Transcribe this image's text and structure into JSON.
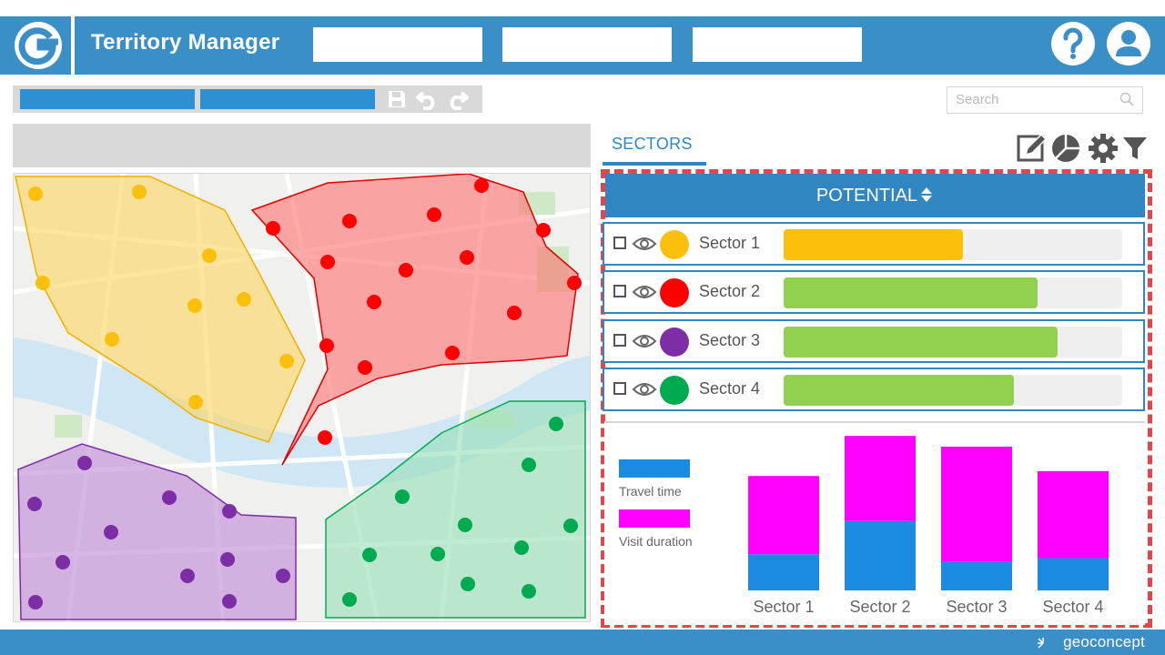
{
  "header": {
    "logo_letter": "G",
    "app_title": "Territory Manager",
    "help_label": "?"
  },
  "toolbar": {
    "search_placeholder": "Search"
  },
  "panel": {
    "tab_label": "SECTORS",
    "column_header": "POTENTIAL",
    "sort_icon": "sort-arrows-icon",
    "actions": [
      "edit-icon",
      "pie-chart-icon",
      "gear-icon",
      "filter-icon"
    ]
  },
  "sectors": [
    {
      "name": "Sector 1",
      "color": "#fcbf0a",
      "potential": 0.53,
      "bar_color": "#fcbf0a"
    },
    {
      "name": "Sector 2",
      "color": "#ff0000",
      "potential": 0.75,
      "bar_color": "#92d050"
    },
    {
      "name": "Sector 3",
      "color": "#7d2ea6",
      "potential": 0.81,
      "bar_color": "#92d050"
    },
    {
      "name": "Sector 4",
      "color": "#00aa4f",
      "potential": 0.68,
      "bar_color": "#92d050"
    }
  ],
  "chart_data": {
    "type": "bar",
    "stacked": true,
    "categories": [
      "Sector 1",
      "Sector 2",
      "Sector 3",
      "Sector 4"
    ],
    "series": [
      {
        "name": "Travel time",
        "color": "#1a8be0",
        "values": [
          37,
          71,
          29,
          33
        ]
      },
      {
        "name": "Visit duration",
        "color": "#ff00ff",
        "values": [
          80,
          87,
          118,
          89
        ]
      }
    ],
    "ylim": [
      0,
      160
    ],
    "legend": "left"
  },
  "footer": {
    "brand": "geoconcept"
  },
  "colors": {
    "primary": "#3a8fc7",
    "accent_frame": "#e2464a"
  }
}
